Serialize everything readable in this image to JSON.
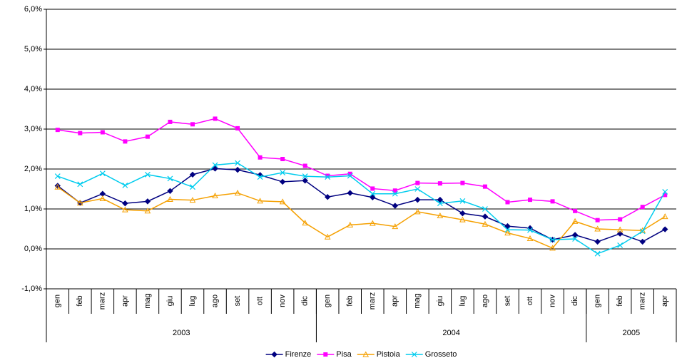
{
  "chart_data": {
    "type": "line",
    "category_groups": [
      {
        "name": "2003",
        "categories": [
          "gen",
          "feb",
          "marz",
          "apr",
          "mag",
          "giu",
          "lug",
          "ago",
          "set",
          "ott",
          "nov",
          "dic"
        ]
      },
      {
        "name": "2004",
        "categories": [
          "gen",
          "feb",
          "marz",
          "apr",
          "mag",
          "giu",
          "lug",
          "ago",
          "set",
          "ott",
          "nov",
          "dic"
        ]
      },
      {
        "name": "2005",
        "categories": [
          "gen",
          "feb",
          "marz",
          "apr"
        ]
      }
    ],
    "series": [
      {
        "name": "Firenze",
        "color": "#000080",
        "marker": "diamond",
        "values": [
          1.58,
          1.15,
          1.38,
          1.14,
          1.19,
          1.45,
          1.86,
          2.01,
          1.98,
          1.85,
          1.68,
          1.71,
          1.3,
          1.4,
          1.29,
          1.08,
          1.23,
          1.23,
          0.89,
          0.81,
          0.57,
          0.52,
          0.23,
          0.35,
          0.18,
          0.38,
          0.18,
          0.49
        ]
      },
      {
        "name": "Pisa",
        "color": "#ff00ff",
        "marker": "square",
        "values": [
          2.98,
          2.9,
          2.92,
          2.69,
          2.81,
          3.18,
          3.12,
          3.26,
          3.02,
          2.29,
          2.25,
          2.08,
          1.83,
          1.88,
          1.51,
          1.46,
          1.65,
          1.64,
          1.65,
          1.56,
          1.17,
          1.23,
          1.19,
          0.95,
          0.72,
          0.74,
          1.05,
          1.35
        ]
      },
      {
        "name": "Pistoia",
        "color": "#f5a000",
        "marker": "triangle",
        "values": [
          1.55,
          1.15,
          1.26,
          0.98,
          0.95,
          1.24,
          1.22,
          1.33,
          1.4,
          1.2,
          1.18,
          0.65,
          0.3,
          0.6,
          0.64,
          0.56,
          0.93,
          0.83,
          0.73,
          0.62,
          0.4,
          0.26,
          0.02,
          0.69,
          0.5,
          0.48,
          0.46,
          0.81
        ]
      },
      {
        "name": "Grosseto",
        "color": "#00ccee",
        "marker": "x",
        "values": [
          1.82,
          1.62,
          1.89,
          1.59,
          1.86,
          1.76,
          1.55,
          2.1,
          2.15,
          1.8,
          1.91,
          1.82,
          1.8,
          1.83,
          1.38,
          1.38,
          1.5,
          1.14,
          1.2,
          1.0,
          0.48,
          0.47,
          0.23,
          0.25,
          -0.12,
          0.09,
          0.44,
          1.43
        ]
      }
    ],
    "ylim": [
      -1,
      6
    ],
    "yticks": [
      {
        "value": -1,
        "label": "-1,0%"
      },
      {
        "value": 0,
        "label": "0,0%"
      },
      {
        "value": 1,
        "label": "1,0%"
      },
      {
        "value": 2,
        "label": "2,0%"
      },
      {
        "value": 3,
        "label": "3,0%"
      },
      {
        "value": 4,
        "label": "4,0%"
      },
      {
        "value": 5,
        "label": "5,0%"
      },
      {
        "value": 6,
        "label": "6,0%"
      }
    ],
    "grid": true,
    "legend": "bottom"
  }
}
